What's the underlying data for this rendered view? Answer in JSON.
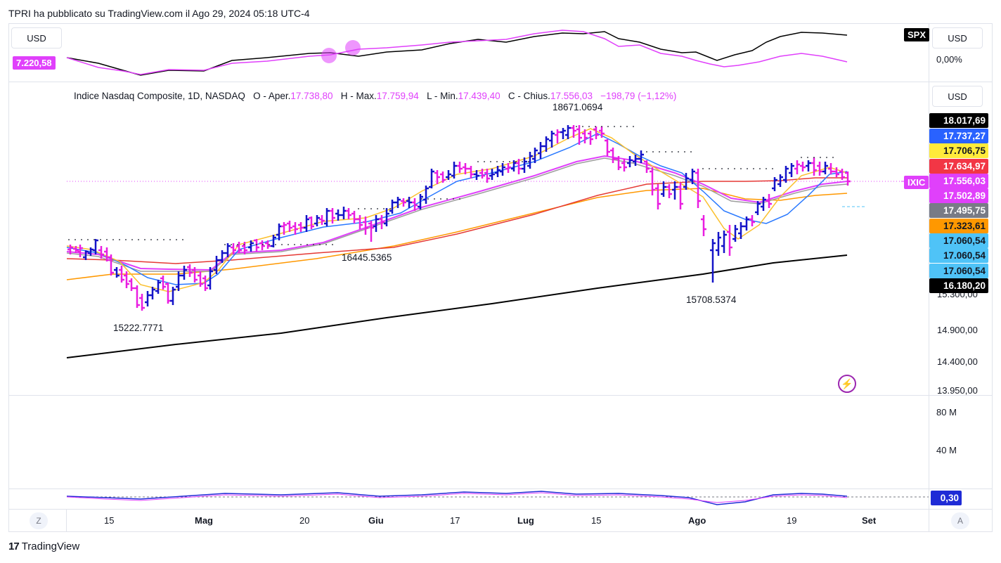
{
  "header": {
    "caption": "TPRI ha pubblicato su TradingView.com il Ago 29, 2024 05:18 UTC-4"
  },
  "top_pane": {
    "left_currency": "USD",
    "left_value": "7.220,58",
    "symbol": "SPX",
    "right_currency": "USD",
    "right_value": "0,00%"
  },
  "main_pane": {
    "currency": "USD",
    "legend": {
      "title": "Indice Nasdaq Composite, 1D, NASDAQ",
      "open_label": "O - Aper.",
      "open": "17.738,80",
      "high_label": "H - Max.",
      "high": "17.759,94",
      "low_label": "L - Min.",
      "low": "17.439,40",
      "close_label": "C - Chius.",
      "close": "17.556,03",
      "change": "−198,79 (−1,12%)"
    },
    "annotations": {
      "high_jul": "18671.0694",
      "level_jun": "16445.5365",
      "low_apr": "15222.7771",
      "low_aug": "15708.5374"
    },
    "symbol_tag": "IXIC",
    "price_tags": [
      {
        "value": "18.017,69",
        "bg": "#000000",
        "fg": "#ffffff"
      },
      {
        "value": "17.737,27",
        "bg": "#2962ff",
        "fg": "#ffffff"
      },
      {
        "value": "17.706,75",
        "bg": "#ffeb3b",
        "fg": "#131722"
      },
      {
        "value": "17.634,97",
        "bg": "#f23645",
        "fg": "#ffffff"
      },
      {
        "value": "17.556,03",
        "bg": "#e040fb",
        "fg": "#ffffff"
      },
      {
        "value": "17.502,89",
        "bg": "#e040fb",
        "fg": "#ffffff"
      },
      {
        "value": "17.495,75",
        "bg": "#787b86",
        "fg": "#ffffff"
      },
      {
        "value": "17.323,61",
        "bg": "#ff9800",
        "fg": "#131722"
      },
      {
        "value": "17.060,54",
        "bg": "#4fc3f7",
        "fg": "#131722"
      },
      {
        "value": "17.060,54",
        "bg": "#4fc3f7",
        "fg": "#131722"
      },
      {
        "value": "17.060,54",
        "bg": "#4fc3f7",
        "fg": "#131722"
      },
      {
        "value": "16.180,20",
        "bg": "#000000",
        "fg": "#ffffff"
      }
    ],
    "axis_ticks": [
      "15.300,00",
      "14.900,00",
      "14.400,00",
      "13.950,00"
    ]
  },
  "volume_pane": {
    "axis_ticks": [
      "80 M",
      "40 M"
    ]
  },
  "osc_pane": {
    "value": "0,30"
  },
  "time_axis": {
    "labels": [
      {
        "text": "15",
        "bold": false
      },
      {
        "text": "Mag",
        "bold": true
      },
      {
        "text": "20",
        "bold": false
      },
      {
        "text": "Giu",
        "bold": true
      },
      {
        "text": "17",
        "bold": false
      },
      {
        "text": "Lug",
        "bold": true
      },
      {
        "text": "15",
        "bold": false
      },
      {
        "text": "Ago",
        "bold": true
      },
      {
        "text": "19",
        "bold": false
      },
      {
        "text": "Set",
        "bold": true
      }
    ],
    "left_button": "Z",
    "right_button": "A"
  },
  "brand": {
    "logo_text": "TradingView",
    "logo_mark": "17"
  },
  "colors": {
    "up_bar": "#1414c8",
    "down_bar": "#e91ee0",
    "ma_black": "#000000",
    "ma_red": "#e53935",
    "ma_orange": "#ff9800",
    "ma_blue": "#2979ff",
    "ma_yellow": "#fbc02d",
    "ma_magenta": "#e040fb",
    "ma_grey": "#9e9e9e",
    "flash_icon": "#9c27b0"
  },
  "chart_data": {
    "type": "line",
    "series": [
      {
        "name": "IXIC",
        "values": [
          17556.03
        ]
      },
      {
        "name": "SPX",
        "values": [
          7220.58
        ]
      }
    ]
  }
}
